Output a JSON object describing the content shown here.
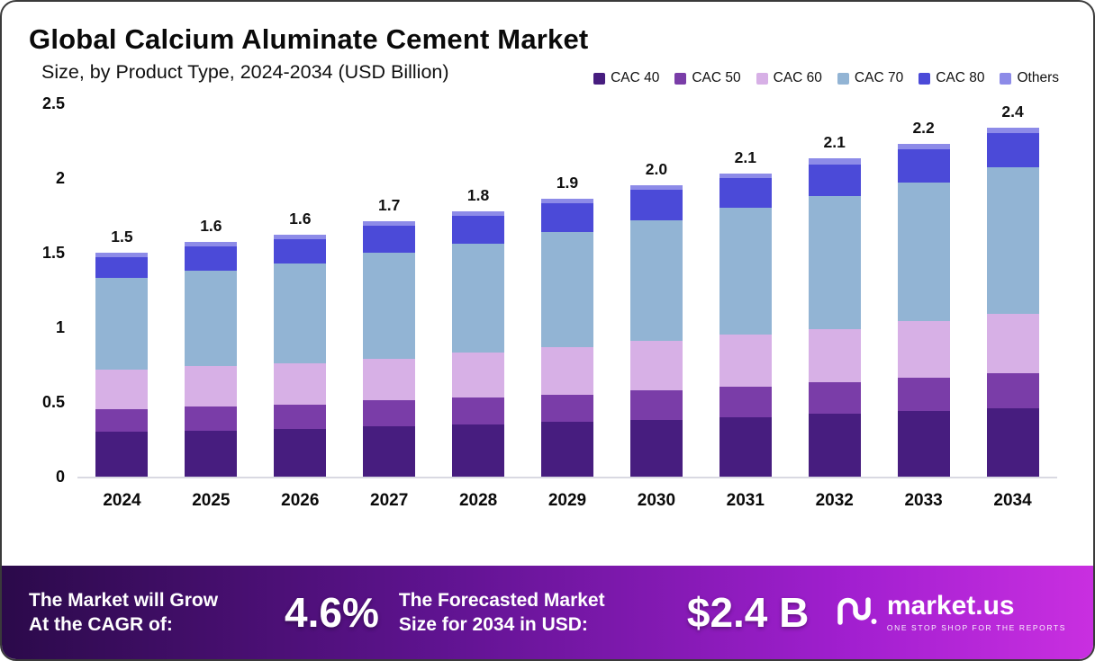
{
  "title": "Global Calcium Aluminate Cement Market",
  "subtitle": "Size, by Product Type, 2024-2034 (USD Billion)",
  "chart_data": {
    "type": "bar",
    "stacked": true,
    "title": "Global Calcium Aluminate Cement Market Size, by Product Type, 2024-2034 (USD Billion)",
    "categories": [
      "2024",
      "2025",
      "2026",
      "2027",
      "2028",
      "2029",
      "2030",
      "2031",
      "2032",
      "2033",
      "2034"
    ],
    "series": [
      {
        "name": "CAC 40",
        "color": "#471d7f",
        "values": [
          0.3,
          0.31,
          0.32,
          0.34,
          0.35,
          0.37,
          0.38,
          0.4,
          0.42,
          0.44,
          0.46
        ]
      },
      {
        "name": "CAC 50",
        "color": "#7a3da8",
        "values": [
          0.15,
          0.16,
          0.16,
          0.17,
          0.18,
          0.18,
          0.2,
          0.2,
          0.21,
          0.22,
          0.23
        ]
      },
      {
        "name": "CAC 60",
        "color": "#d7b0e6",
        "values": [
          0.27,
          0.27,
          0.28,
          0.28,
          0.3,
          0.32,
          0.33,
          0.35,
          0.36,
          0.38,
          0.4
        ]
      },
      {
        "name": "CAC 70",
        "color": "#92b4d4",
        "values": [
          0.61,
          0.64,
          0.67,
          0.71,
          0.73,
          0.77,
          0.81,
          0.85,
          0.89,
          0.93,
          0.98
        ]
      },
      {
        "name": "CAC 80",
        "color": "#4b4ad8",
        "values": [
          0.14,
          0.16,
          0.16,
          0.18,
          0.19,
          0.19,
          0.2,
          0.2,
          0.21,
          0.22,
          0.23
        ]
      },
      {
        "name": "Others",
        "color": "#8d8be8",
        "values": [
          0.03,
          0.03,
          0.03,
          0.03,
          0.03,
          0.03,
          0.03,
          0.03,
          0.04,
          0.04,
          0.04
        ]
      }
    ],
    "totals": [
      "1.5",
      "1.6",
      "1.6",
      "1.7",
      "1.8",
      "1.9",
      "2.0",
      "2.1",
      "2.1",
      "2.2",
      "2.4"
    ],
    "y_ticks": [
      "0",
      "0.5",
      "1",
      "1.5",
      "2",
      "2.5"
    ],
    "ylim": [
      0,
      2.5
    ],
    "legend_position": "top-right",
    "grid": false
  },
  "footer": {
    "cagr_label": "The Market will Grow\nAt the CAGR of:",
    "cagr_value": "4.6%",
    "forecast_label": "The Forecasted Market\nSize for 2034 in USD:",
    "forecast_value": "$2.4 B",
    "brand": "market.us",
    "brand_tagline": "ONE STOP SHOP FOR THE REPORTS"
  }
}
